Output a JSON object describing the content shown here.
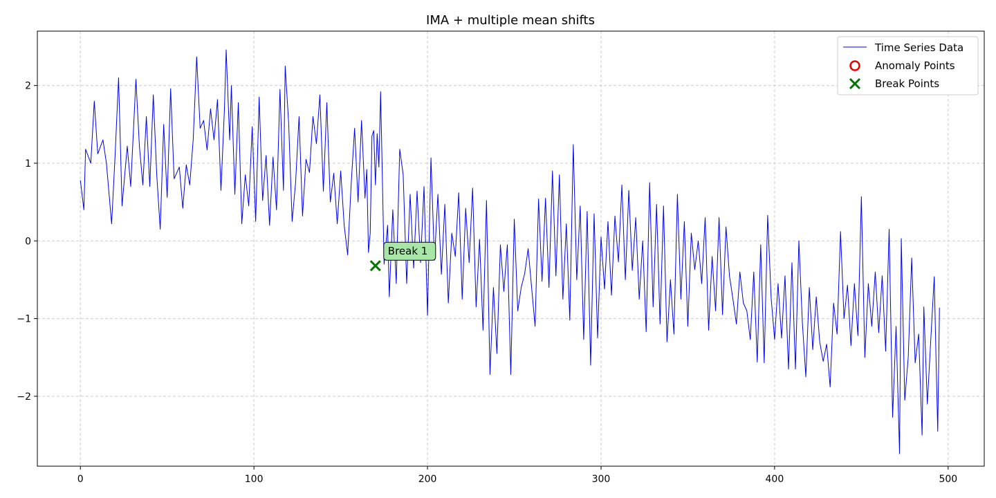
{
  "chart_data": {
    "type": "line",
    "title": "IMA + multiple mean shifts",
    "xlabel": "",
    "ylabel": "",
    "xlim": [
      -24.8,
      520.8
    ],
    "ylim": [
      -2.9,
      2.7
    ],
    "xticks": [
      0,
      100,
      200,
      300,
      400,
      500
    ],
    "yticks": [
      -2,
      -1,
      0,
      1,
      2
    ],
    "grid": true,
    "legend_position": "top-right",
    "colors": {
      "series": "#0000ee",
      "anomaly": "#ee0000",
      "break": "#007700",
      "annotation_fill": "#a8e6a8"
    },
    "series": [
      {
        "name": "Time Series Data",
        "knots": [
          [
            0,
            0.78
          ],
          [
            2,
            0.4
          ],
          [
            3,
            1.18
          ],
          [
            6,
            1.0
          ],
          [
            8,
            1.8
          ],
          [
            10,
            1.12
          ],
          [
            13,
            1.3
          ],
          [
            15,
            1.0
          ],
          [
            18,
            0.22
          ],
          [
            20,
            1.1
          ],
          [
            22,
            2.1
          ],
          [
            24,
            0.45
          ],
          [
            27,
            1.22
          ],
          [
            29,
            0.7
          ],
          [
            32,
            2.08
          ],
          [
            34,
            1.22
          ],
          [
            36,
            0.72
          ],
          [
            38,
            1.6
          ],
          [
            40,
            0.7
          ],
          [
            42,
            1.88
          ],
          [
            44,
            0.85
          ],
          [
            46,
            0.15
          ],
          [
            48,
            1.5
          ],
          [
            50,
            0.56
          ],
          [
            52,
            1.96
          ],
          [
            54,
            0.8
          ],
          [
            57,
            0.95
          ],
          [
            59,
            0.42
          ],
          [
            61,
            0.98
          ],
          [
            63,
            0.72
          ],
          [
            65,
            1.3
          ],
          [
            67,
            2.37
          ],
          [
            69,
            1.45
          ],
          [
            71,
            1.55
          ],
          [
            73,
            1.17
          ],
          [
            75,
            1.7
          ],
          [
            77,
            1.3
          ],
          [
            79,
            1.82
          ],
          [
            81,
            0.65
          ],
          [
            83,
            1.7
          ],
          [
            84,
            2.46
          ],
          [
            86,
            1.3
          ],
          [
            87,
            2.0
          ],
          [
            89,
            0.6
          ],
          [
            91,
            1.78
          ],
          [
            93,
            0.22
          ],
          [
            95,
            0.85
          ],
          [
            97,
            0.45
          ],
          [
            99,
            1.47
          ],
          [
            101,
            0.25
          ],
          [
            103,
            1.85
          ],
          [
            105,
            0.52
          ],
          [
            107,
            1.1
          ],
          [
            109,
            0.2
          ],
          [
            111,
            1.08
          ],
          [
            113,
            0.4
          ],
          [
            115,
            1.95
          ],
          [
            117,
            0.65
          ],
          [
            118,
            2.25
          ],
          [
            120,
            1.52
          ],
          [
            122,
            0.25
          ],
          [
            124,
            0.75
          ],
          [
            126,
            1.6
          ],
          [
            128,
            0.32
          ],
          [
            130,
            1.05
          ],
          [
            132,
            0.88
          ],
          [
            134,
            1.6
          ],
          [
            136,
            1.25
          ],
          [
            138,
            1.88
          ],
          [
            140,
            0.64
          ],
          [
            142,
            1.78
          ],
          [
            144,
            0.5
          ],
          [
            146,
            0.87
          ],
          [
            148,
            0.22
          ],
          [
            150,
            0.9
          ],
          [
            152,
            0.2
          ],
          [
            154,
            -0.18
          ],
          [
            156,
            0.72
          ],
          [
            158,
            1.45
          ],
          [
            160,
            0.5
          ],
          [
            162,
            1.55
          ],
          [
            164,
            0.55
          ],
          [
            165,
            0.92
          ],
          [
            166,
            -0.15
          ],
          [
            167,
            0.1
          ],
          [
            168,
            1.35
          ],
          [
            169,
            1.42
          ],
          [
            170,
            0.72
          ],
          [
            171,
            1.38
          ],
          [
            172,
            0.95
          ],
          [
            173,
            1.92
          ],
          [
            175,
            -0.3
          ],
          [
            177,
            0.2
          ],
          [
            178,
            -0.72
          ],
          [
            180,
            0.4
          ],
          [
            182,
            -0.55
          ],
          [
            184,
            1.18
          ],
          [
            186,
            0.85
          ],
          [
            188,
            -0.55
          ],
          [
            190,
            0.6
          ],
          [
            192,
            -0.35
          ],
          [
            194,
            0.64
          ],
          [
            196,
            -0.28
          ],
          [
            198,
            0.7
          ],
          [
            200,
            -0.96
          ],
          [
            202,
            1.07
          ],
          [
            204,
            -0.25
          ],
          [
            206,
            0.6
          ],
          [
            208,
            -0.43
          ],
          [
            210,
            0.47
          ],
          [
            212,
            -0.8
          ],
          [
            214,
            0.1
          ],
          [
            216,
            -0.2
          ],
          [
            218,
            0.62
          ],
          [
            220,
            -0.75
          ],
          [
            222,
            0.42
          ],
          [
            224,
            -0.28
          ],
          [
            226,
            0.68
          ],
          [
            228,
            -0.85
          ],
          [
            230,
            0.02
          ],
          [
            232,
            -1.15
          ],
          [
            234,
            0.52
          ],
          [
            236,
            -1.72
          ],
          [
            238,
            -0.6
          ],
          [
            240,
            -1.45
          ],
          [
            242,
            -0.05
          ],
          [
            244,
            -0.65
          ],
          [
            246,
            -0.05
          ],
          [
            248,
            -1.72
          ],
          [
            250,
            0.28
          ],
          [
            252,
            -0.9
          ],
          [
            254,
            -0.6
          ],
          [
            256,
            -0.42
          ],
          [
            258,
            -0.1
          ],
          [
            260,
            -0.6
          ],
          [
            262,
            -1.1
          ],
          [
            264,
            0.54
          ],
          [
            266,
            -0.52
          ],
          [
            268,
            0.55
          ],
          [
            270,
            -0.6
          ],
          [
            272,
            0.9
          ],
          [
            274,
            -0.45
          ],
          [
            276,
            0.85
          ],
          [
            278,
            -0.75
          ],
          [
            280,
            0.22
          ],
          [
            282,
            -1.02
          ],
          [
            284,
            1.24
          ],
          [
            286,
            -0.5
          ],
          [
            288,
            0.45
          ],
          [
            290,
            -1.27
          ],
          [
            292,
            0.38
          ],
          [
            294,
            -1.6
          ],
          [
            296,
            0.35
          ],
          [
            298,
            -1.25
          ],
          [
            300,
            0.05
          ],
          [
            302,
            -0.62
          ],
          [
            304,
            0.25
          ],
          [
            306,
            -0.7
          ],
          [
            308,
            0.32
          ],
          [
            310,
            -0.27
          ],
          [
            312,
            0.72
          ],
          [
            314,
            -0.5
          ],
          [
            316,
            0.65
          ],
          [
            318,
            -0.38
          ],
          [
            320,
            0.3
          ],
          [
            322,
            -0.75
          ],
          [
            324,
            0.0
          ],
          [
            326,
            -1.17
          ],
          [
            328,
            0.75
          ],
          [
            330,
            -0.85
          ],
          [
            332,
            0.47
          ],
          [
            334,
            -1.07
          ],
          [
            336,
            0.45
          ],
          [
            338,
            -1.3
          ],
          [
            340,
            -0.5
          ],
          [
            342,
            -1.2
          ],
          [
            344,
            0.6
          ],
          [
            346,
            -0.75
          ],
          [
            348,
            0.25
          ],
          [
            350,
            -1.1
          ],
          [
            352,
            0.1
          ],
          [
            354,
            -0.37
          ],
          [
            356,
            0.0
          ],
          [
            358,
            -0.55
          ],
          [
            360,
            0.3
          ],
          [
            362,
            -1.15
          ],
          [
            364,
            -0.2
          ],
          [
            366,
            -0.9
          ],
          [
            368,
            0.3
          ],
          [
            370,
            -0.95
          ],
          [
            372,
            0.18
          ],
          [
            374,
            -0.45
          ],
          [
            376,
            -0.75
          ],
          [
            378,
            -1.07
          ],
          [
            380,
            -0.4
          ],
          [
            382,
            -0.8
          ],
          [
            384,
            -0.9
          ],
          [
            386,
            -1.27
          ],
          [
            388,
            -0.4
          ],
          [
            390,
            -1.56
          ],
          [
            392,
            -0.05
          ],
          [
            394,
            -1.57
          ],
          [
            396,
            0.33
          ],
          [
            398,
            -0.73
          ],
          [
            400,
            -1.27
          ],
          [
            402,
            -0.55
          ],
          [
            404,
            -1.25
          ],
          [
            406,
            -0.45
          ],
          [
            408,
            -1.65
          ],
          [
            410,
            -0.28
          ],
          [
            412,
            -1.65
          ],
          [
            414,
            0.0
          ],
          [
            416,
            -1.05
          ],
          [
            418,
            -1.75
          ],
          [
            420,
            -0.6
          ],
          [
            422,
            -1.4
          ],
          [
            424,
            -0.72
          ],
          [
            426,
            -1.3
          ],
          [
            428,
            -1.55
          ],
          [
            430,
            -1.33
          ],
          [
            432,
            -1.88
          ],
          [
            434,
            -0.8
          ],
          [
            436,
            -1.2
          ],
          [
            438,
            0.12
          ],
          [
            440,
            -1.0
          ],
          [
            442,
            -0.57
          ],
          [
            444,
            -1.35
          ],
          [
            446,
            -0.55
          ],
          [
            448,
            -1.22
          ],
          [
            450,
            0.57
          ],
          [
            452,
            -1.5
          ],
          [
            454,
            -0.55
          ],
          [
            456,
            -1.1
          ],
          [
            458,
            -0.4
          ],
          [
            460,
            -1.18
          ],
          [
            462,
            -0.45
          ],
          [
            464,
            -1.42
          ],
          [
            466,
            0.15
          ],
          [
            468,
            -2.27
          ],
          [
            470,
            -1.1
          ],
          [
            472,
            -2.74
          ],
          [
            473,
            0.03
          ],
          [
            475,
            -2.05
          ],
          [
            477,
            -1.5
          ],
          [
            479,
            -0.22
          ],
          [
            481,
            -1.57
          ],
          [
            483,
            -1.2
          ],
          [
            485,
            -2.5
          ],
          [
            486,
            -0.85
          ],
          [
            488,
            -2.1
          ],
          [
            490,
            -1.27
          ],
          [
            492,
            -0.46
          ],
          [
            493,
            -1.5
          ],
          [
            494,
            -2.45
          ],
          [
            495,
            -0.86
          ]
        ]
      },
      {
        "name": "Anomaly Points",
        "points": []
      },
      {
        "name": "Break Points",
        "points": [
          [
            170,
            -0.32
          ]
        ]
      }
    ],
    "annotations": [
      {
        "text": "Break 1",
        "x": 170,
        "y": -0.32
      }
    ]
  }
}
